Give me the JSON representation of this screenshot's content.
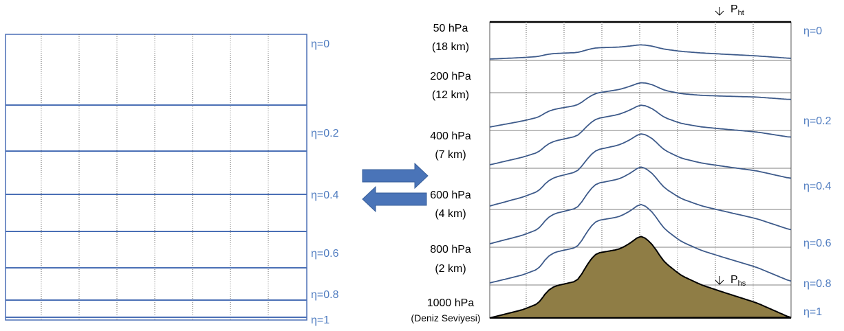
{
  "left_labels": [
    "η=0",
    "η=0.2",
    "η=0.4",
    "η=0.6",
    "η=0.8",
    "η=1"
  ],
  "right_labels": [
    "η=0",
    "η=0.2",
    "η=0.4",
    "η=0.6",
    "η=0.8",
    "η=1"
  ],
  "pressure_levels": [
    {
      "pressure": "50 hPa",
      "height": "(18 km)"
    },
    {
      "pressure": "200 hPa",
      "height": "(12 km)"
    },
    {
      "pressure": "400 hPa",
      "height": "(7 km)"
    },
    {
      "pressure": "600 hPa",
      "height": "(4 km)"
    },
    {
      "pressure": "800 hPa",
      "height": "(2 km)"
    },
    {
      "pressure": "1000 hPa",
      "height": "(Deniz Seviyesi)"
    }
  ],
  "top_pressure": {
    "base": "P",
    "sub": "ht"
  },
  "surface_pressure": {
    "base": "P",
    "sub": "hs"
  }
}
